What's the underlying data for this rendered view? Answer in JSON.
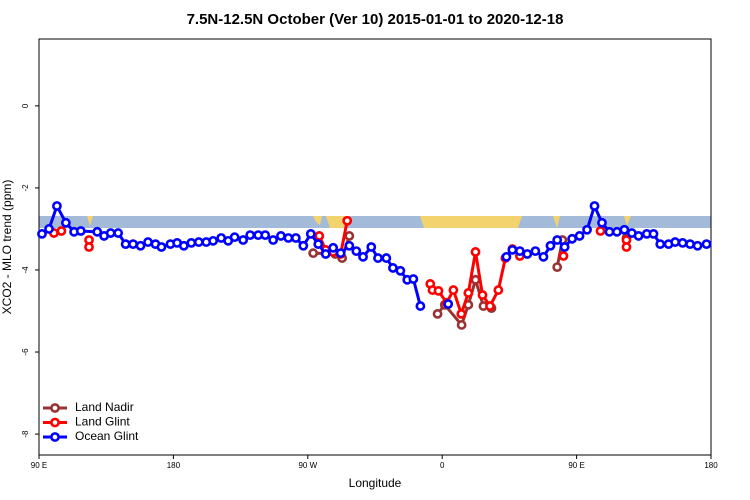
{
  "chart_data": {
    "type": "line",
    "title": "7.5N-12.5N October (Ver 10)   2015-01-01 to 2020-12-18",
    "x_label": "Longitude",
    "y_label": "XCO2 - MLO trend (ppm)",
    "xlim": [
      90,
      540
    ],
    "ylim": [
      -8.51,
      1.63
    ],
    "xticks": [
      {
        "value": 90,
        "label": "90 E"
      },
      {
        "value": 180,
        "label": "180"
      },
      {
        "value": 270,
        "label": "90 W"
      },
      {
        "value": 360,
        "label": "0"
      },
      {
        "value": 450,
        "label": "90 E"
      },
      {
        "value": 540,
        "label": "180"
      }
    ],
    "yticks": [
      0,
      -2,
      -4,
      -6,
      -8
    ],
    "legend": "bottomleft",
    "series": [
      {
        "name": "Land Nadir",
        "color": "#993333",
        "x": [
          273.6,
          288.4,
          293,
          297.8,
          320,
          356.9,
          361.7,
          373,
          377.5,
          382.3,
          387.6,
          393,
          415,
          437,
          440.5,
          460,
          483.4
        ],
        "values": [
          -3.59,
          -3.61,
          -3.71,
          -3.17,
          null,
          -5.07,
          -4.85,
          -5.34,
          -4.85,
          -4.24,
          -4.88,
          -4.93,
          null,
          -3.93,
          -3.27,
          null,
          -3.22
        ]
      },
      {
        "name": "Land Glint",
        "color": "#ff0000",
        "x": [
          100,
          105,
          114,
          123.5,
          123.5,
          200,
          277.7,
          282,
          287,
          292,
          296.4,
          325,
          352,
          353.5,
          357.5,
          363,
          367.5,
          372.8,
          377.5,
          382.3,
          387,
          392,
          397.6,
          402.3,
          407,
          412,
          425,
          441.2,
          455,
          466,
          475,
          483.4,
          483.4
        ],
        "values": [
          -3.1,
          -3.05,
          null,
          -3.27,
          -3.44,
          null,
          -3.17,
          -3.51,
          -3.56,
          -3.61,
          -2.8,
          null,
          -4.34,
          -4.49,
          -4.51,
          -4.8,
          -4.49,
          -5.07,
          -4.56,
          -3.56,
          -4.61,
          -4.88,
          -4.49,
          -3.71,
          -3.49,
          -3.66,
          null,
          -3.66,
          null,
          -3.05,
          null,
          -3.27,
          -3.44
        ]
      },
      {
        "name": "Ocean Glint",
        "color": "#0000ff",
        "x": [
          92,
          96.7,
          102,
          108,
          113.5,
          118,
          129,
          133.6,
          138,
          143,
          148,
          153,
          158,
          163,
          168,
          172,
          178,
          182.5,
          187,
          192,
          197,
          202,
          206.6,
          212,
          216.7,
          221,
          226.7,
          231.4,
          236.8,
          241.5,
          246.8,
          252,
          257,
          262,
          267,
          272,
          277,
          282,
          287,
          292,
          297.8,
          302.5,
          307,
          312.5,
          317,
          322.6,
          327,
          332,
          336.6,
          340.7,
          345.4,
          355,
          364,
          383,
          403,
          407,
          412,
          417,
          422.4,
          427.8,
          432.5,
          437,
          442,
          447,
          452,
          457,
          462,
          467,
          472,
          477,
          482,
          487,
          491.5,
          497,
          501.5,
          506,
          511.6,
          516,
          521,
          526,
          531,
          537
        ],
        "values": [
          -3.12,
          -3.0,
          -2.44,
          -2.85,
          -3.07,
          -3.05,
          -3.07,
          -3.17,
          -3.1,
          -3.1,
          -3.37,
          -3.37,
          -3.41,
          -3.32,
          -3.37,
          -3.44,
          -3.37,
          -3.34,
          -3.41,
          -3.34,
          -3.32,
          -3.32,
          -3.29,
          -3.22,
          -3.29,
          -3.2,
          -3.27,
          -3.15,
          -3.15,
          -3.15,
          -3.27,
          -3.17,
          -3.22,
          -3.22,
          -3.41,
          -3.12,
          -3.37,
          -3.61,
          -3.46,
          -3.59,
          -3.41,
          -3.54,
          -3.68,
          -3.44,
          -3.71,
          -3.71,
          -3.95,
          -4.02,
          -4.24,
          -4.22,
          -4.88,
          null,
          -4.83,
          null,
          -3.68,
          -3.51,
          -3.54,
          -3.61,
          -3.54,
          -3.68,
          -3.41,
          -3.27,
          -3.44,
          -3.24,
          -3.17,
          -3.02,
          -2.44,
          -2.85,
          -3.07,
          -3.07,
          -3.02,
          -3.1,
          -3.17,
          -3.12,
          -3.12,
          -3.37,
          -3.37,
          -3.32,
          -3.34,
          -3.37,
          -3.41,
          -3.37
        ]
      }
    ]
  }
}
